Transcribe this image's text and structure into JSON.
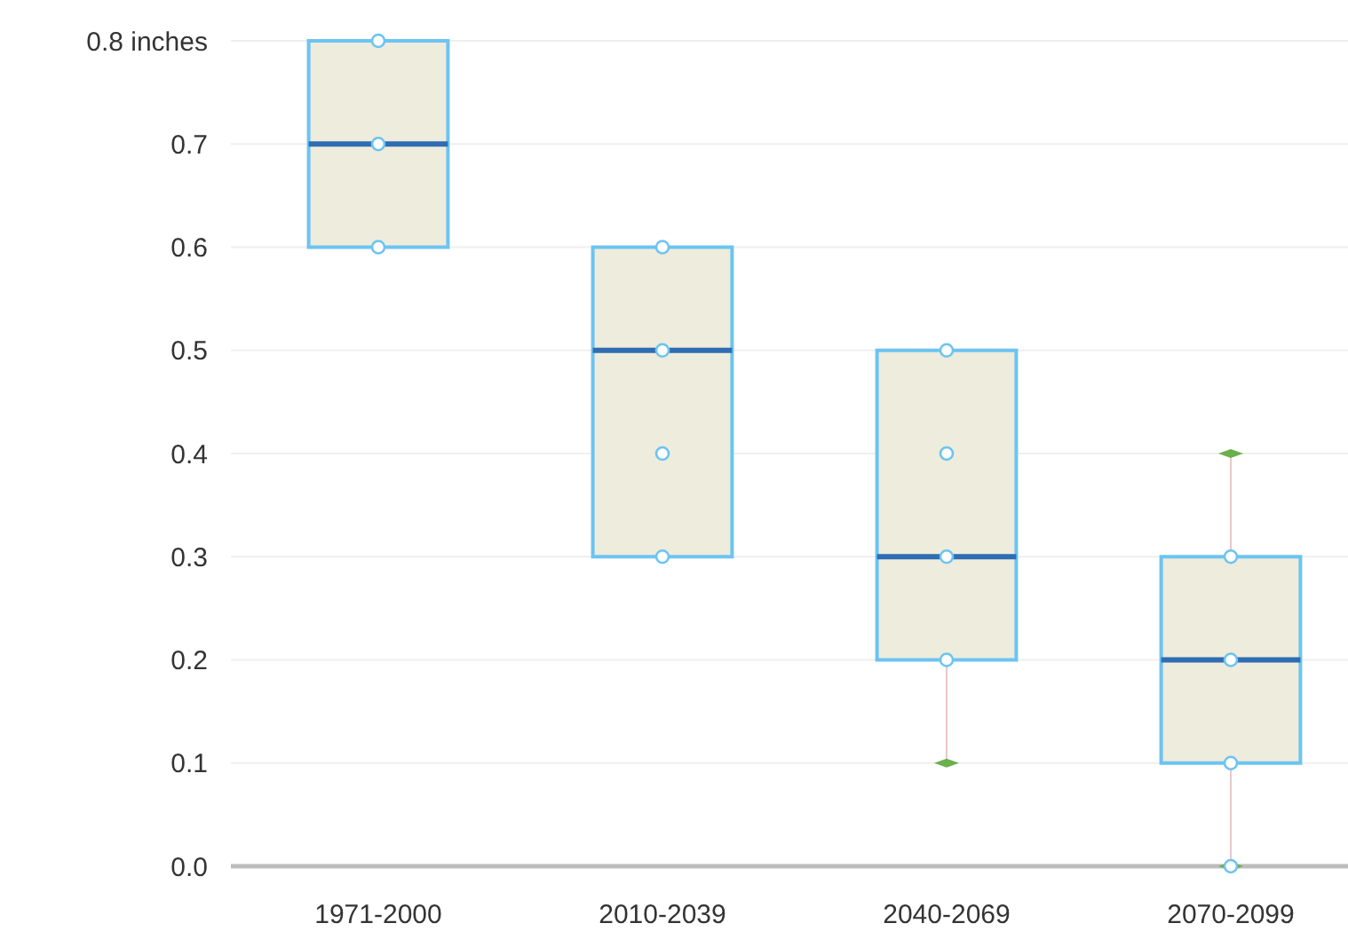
{
  "chart_data": {
    "type": "box",
    "categories": [
      "1971-2000",
      "2010-2039",
      "2040-2069",
      "2070-2099"
    ],
    "boxes": [
      {
        "low": 0.6,
        "q1": 0.6,
        "median": 0.7,
        "q3": 0.8,
        "high": 0.8
      },
      {
        "low": 0.3,
        "q1": 0.3,
        "median": 0.5,
        "q3": 0.6,
        "high": 0.6
      },
      {
        "low": 0.1,
        "q1": 0.2,
        "median": 0.3,
        "q3": 0.5,
        "high": 0.5
      },
      {
        "low": 0.0,
        "q1": 0.1,
        "median": 0.2,
        "q3": 0.3,
        "high": 0.4
      }
    ],
    "color": "#eeecdc",
    "series": [
      {
        "type": "scatter",
        "marker": "diamond",
        "color": "#6ab04c",
        "x": [
          "2040-2069",
          "2070-2099",
          "2070-2099"
        ],
        "values": [
          0.1,
          0.4,
          0.0
        ]
      },
      {
        "type": "scatter",
        "marker": "circle",
        "color": "#ffffff",
        "x": [
          "1971-2000",
          "1971-2000",
          "1971-2000",
          "2010-2039",
          "2010-2039",
          "2010-2039",
          "2010-2039",
          "2040-2069",
          "2040-2069",
          "2040-2069",
          "2040-2069",
          "2070-2099",
          "2070-2099",
          "2070-2099",
          "2070-2099"
        ],
        "values": [
          0.8,
          0.7,
          0.6,
          0.6,
          0.5,
          0.4,
          0.3,
          0.5,
          0.4,
          0.3,
          0.2,
          0.3,
          0.2,
          0.1,
          0.0
        ]
      }
    ],
    "ylim": [
      0,
      0.8
    ],
    "yticks": [
      {
        "value": 0,
        "label": "0.0"
      },
      {
        "value": 0.1,
        "label": "0.1"
      },
      {
        "value": 0.2,
        "label": "0.2"
      },
      {
        "value": 0.3,
        "label": "0.3"
      },
      {
        "value": 0.4,
        "label": "0.4"
      },
      {
        "value": 0.5,
        "label": "0.5"
      },
      {
        "value": 0.6,
        "label": "0.6"
      },
      {
        "value": 0.7,
        "label": "0.7"
      },
      {
        "value": 0.8,
        "label": "0.8 inches"
      }
    ],
    "grid": "y"
  }
}
